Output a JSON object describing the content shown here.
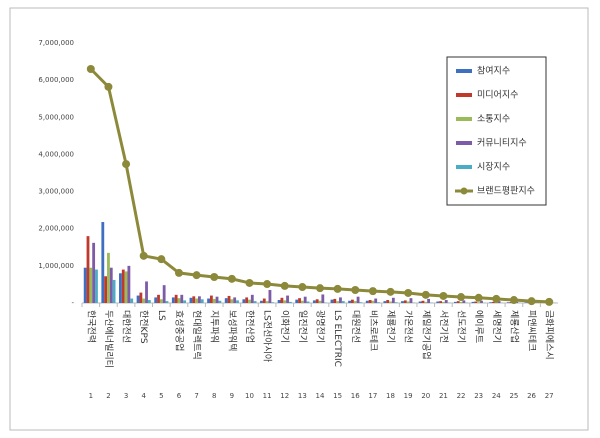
{
  "chart_data": {
    "type": "bar",
    "categories": [
      "한국전력",
      "두산에너빌리티",
      "대한전선",
      "한전KPS",
      "LS",
      "효성중공업",
      "현대일렉트릭",
      "지투파워",
      "보성파워텍",
      "한전산업",
      "LS전선아시아",
      "이화전기",
      "일진전기",
      "광명전기",
      "LS ELECTRIC",
      "대원전선",
      "비츠로테크",
      "제룡전기",
      "가온전선",
      "제일전기공업",
      "서전기전",
      "선도전기",
      "에이루트",
      "세명전기",
      "제룡산업",
      "피앤씨테크",
      "금화피에스시"
    ],
    "ranks": [
      1,
      2,
      3,
      4,
      5,
      6,
      7,
      8,
      9,
      10,
      11,
      12,
      13,
      14,
      15,
      16,
      17,
      18,
      19,
      20,
      21,
      22,
      23,
      24,
      25,
      26,
      27
    ],
    "ylim": [
      0,
      7000000
    ],
    "yticks": [
      {
        "value": 0,
        "label": "-"
      },
      {
        "value": 1000000,
        "label": "1,000,000"
      },
      {
        "value": 2000000,
        "label": "2,000,000"
      },
      {
        "value": 3000000,
        "label": "3,000,000"
      },
      {
        "value": 4000000,
        "label": "4,000,000"
      },
      {
        "value": 5000000,
        "label": "5,000,000"
      },
      {
        "value": 6000000,
        "label": "6,000,000"
      },
      {
        "value": 7000000,
        "label": "7,000,000"
      }
    ],
    "grid": false,
    "legend": "top-right",
    "series": [
      {
        "name": "참여지수",
        "type": "bar",
        "color": "#3e6fc1",
        "values": [
          950000,
          2180000,
          800000,
          200000,
          150000,
          150000,
          140000,
          120000,
          130000,
          100000,
          60000,
          80000,
          90000,
          70000,
          90000,
          60000,
          60000,
          50000,
          50000,
          40000,
          40000,
          30000,
          30000,
          20000,
          20000,
          15000,
          10000
        ]
      },
      {
        "name": "미디어지수",
        "type": "bar",
        "color": "#c0392b",
        "values": [
          1800000,
          720000,
          900000,
          280000,
          220000,
          220000,
          180000,
          200000,
          190000,
          150000,
          120000,
          140000,
          130000,
          100000,
          110000,
          90000,
          80000,
          80000,
          70000,
          60000,
          50000,
          50000,
          40000,
          30000,
          25000,
          20000,
          10000
        ]
      },
      {
        "name": "소통지수",
        "type": "bar",
        "color": "#9bbb59",
        "values": [
          950000,
          1350000,
          850000,
          120000,
          100000,
          130000,
          120000,
          110000,
          100000,
          90000,
          50000,
          70000,
          60000,
          60000,
          50000,
          50000,
          60000,
          40000,
          40000,
          30000,
          30000,
          30000,
          20000,
          20000,
          15000,
          10000,
          5000
        ]
      },
      {
        "name": "커뮤니티지수",
        "type": "bar",
        "color": "#7d5ba6",
        "values": [
          1620000,
          950000,
          1000000,
          580000,
          480000,
          220000,
          180000,
          170000,
          150000,
          220000,
          350000,
          200000,
          170000,
          230000,
          150000,
          170000,
          120000,
          140000,
          130000,
          110000,
          80000,
          70000,
          60000,
          50000,
          30000,
          20000,
          10000
        ]
      },
      {
        "name": "시장지수",
        "type": "bar",
        "color": "#4bacc6",
        "values": [
          900000,
          620000,
          120000,
          80000,
          50000,
          70000,
          100000,
          60000,
          70000,
          50000,
          20000,
          30000,
          40000,
          10000,
          50000,
          20000,
          20000,
          20000,
          10000,
          10000,
          10000,
          10000,
          5000,
          5000,
          5000,
          5000,
          5000
        ]
      },
      {
        "name": "브랜드평판지수",
        "type": "line",
        "color": "#8c8a3a",
        "values": [
          6300000,
          5820000,
          3740000,
          1270000,
          1180000,
          810000,
          750000,
          700000,
          650000,
          540000,
          510000,
          460000,
          430000,
          400000,
          380000,
          350000,
          320000,
          300000,
          270000,
          220000,
          190000,
          160000,
          140000,
          110000,
          80000,
          50000,
          30000
        ]
      }
    ]
  }
}
